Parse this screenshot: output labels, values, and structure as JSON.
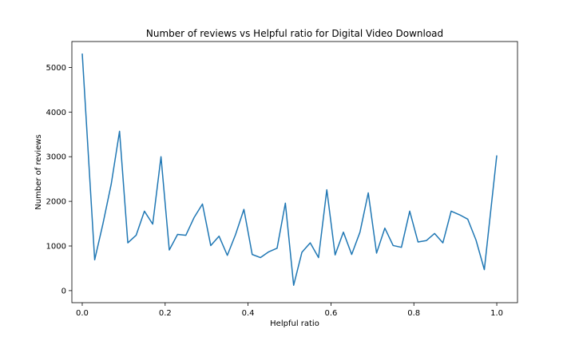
{
  "chart_data": {
    "type": "line",
    "title": "Number of reviews vs Helpful ratio for Digital Video Download",
    "xlabel": "Helpful ratio",
    "ylabel": "Number of reviews",
    "xlim": [
      -0.025,
      1.05
    ],
    "ylim": [
      -270,
      5580
    ],
    "xticks": [
      0.0,
      0.2,
      0.4,
      0.6,
      0.8,
      1.0
    ],
    "xtick_labels": [
      "0.0",
      "0.2",
      "0.4",
      "0.6",
      "0.8",
      "1.0"
    ],
    "yticks": [
      0,
      1000,
      2000,
      3000,
      4000,
      5000
    ],
    "ytick_labels": [
      "0",
      "1000",
      "2000",
      "3000",
      "4000",
      "5000"
    ],
    "grid": false,
    "line_color": "#1f77b4",
    "series": [
      {
        "x": [
          0.0,
          0.03,
          0.05,
          0.07,
          0.09,
          0.11,
          0.13,
          0.15,
          0.17,
          0.19,
          0.21,
          0.23,
          0.25,
          0.27,
          0.29,
          0.31,
          0.33,
          0.35,
          0.37,
          0.39,
          0.41,
          0.43,
          0.45,
          0.47,
          0.49,
          0.51,
          0.53,
          0.55,
          0.57,
          0.59,
          0.61,
          0.63,
          0.65,
          0.67,
          0.69,
          0.71,
          0.73,
          0.75,
          0.77,
          0.79,
          0.81,
          0.83,
          0.85,
          0.87,
          0.89,
          0.91,
          0.93,
          0.95,
          0.97,
          1.0
        ],
        "y": [
          5310,
          690,
          1500,
          2390,
          3570,
          1070,
          1240,
          1780,
          1490,
          3000,
          910,
          1260,
          1240,
          1640,
          1940,
          1010,
          1220,
          790,
          1260,
          1820,
          810,
          740,
          870,
          950,
          1960,
          120,
          860,
          1070,
          740,
          2260,
          800,
          1310,
          810,
          1310,
          2190,
          840,
          1400,
          1010,
          970,
          1780,
          1090,
          1120,
          1280,
          1070,
          1780,
          1700,
          1600,
          1130,
          470,
          3030
        ]
      }
    ]
  }
}
